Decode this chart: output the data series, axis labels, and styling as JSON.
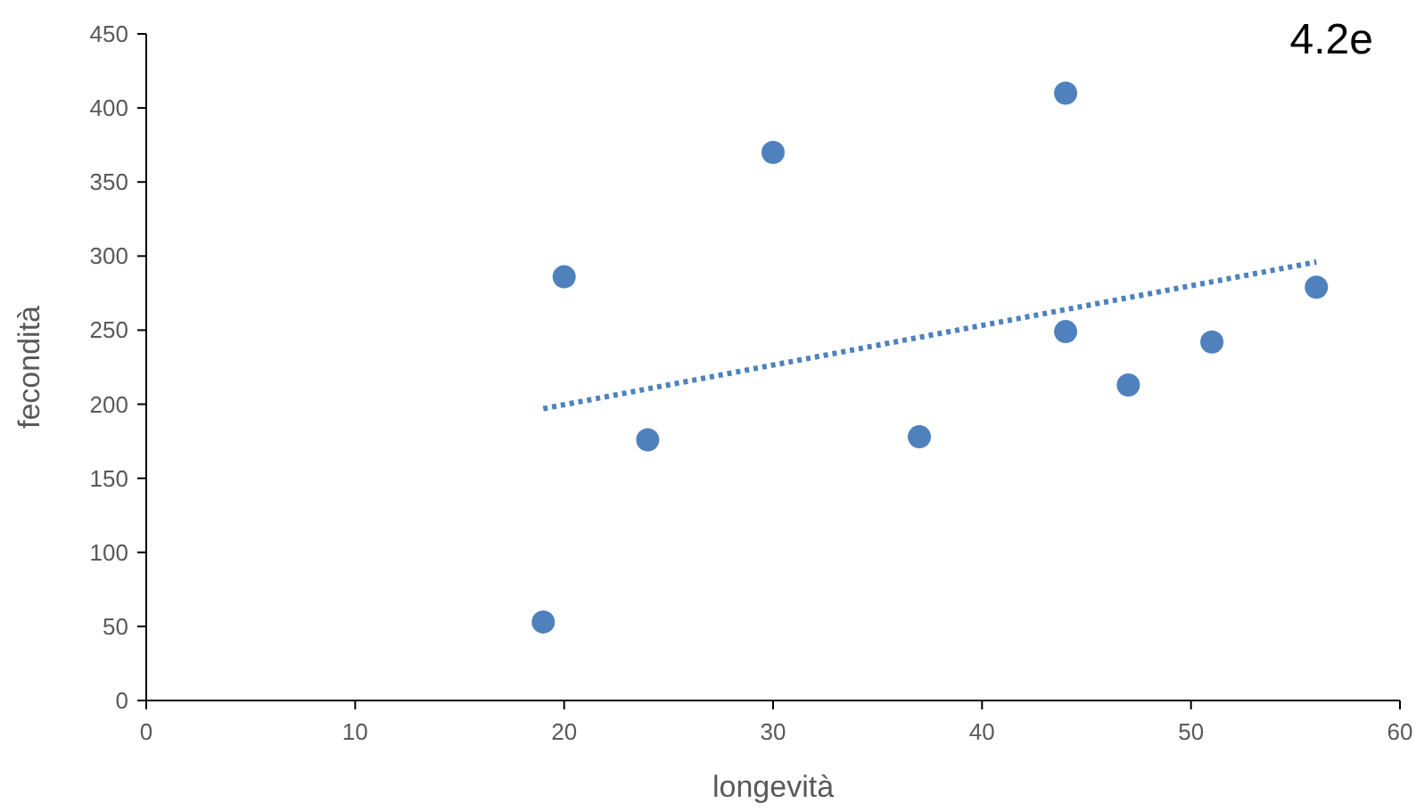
{
  "chart_data": {
    "type": "scatter",
    "title": "4.2e",
    "xlabel": "longevità",
    "ylabel": "fecondità",
    "xlim": [
      0,
      60
    ],
    "xticks": [
      0,
      10,
      20,
      30,
      40,
      50,
      60
    ],
    "ylim": [
      0,
      450
    ],
    "yticks": [
      0,
      50,
      100,
      150,
      200,
      250,
      300,
      350,
      400,
      450
    ],
    "grid": false,
    "marker": "circle",
    "series": [
      {
        "color": "#4f81bd",
        "x": [
          19,
          20,
          24,
          30,
          37,
          44,
          44,
          47,
          51,
          56
        ],
        "values": [
          53,
          286,
          176,
          370,
          178,
          410,
          249,
          213,
          242,
          279
        ]
      },
      {
        "type": "line",
        "color": "#4f81bd",
        "line_style": "dotted",
        "marker": "none",
        "x": [
          19,
          56
        ],
        "values": [
          197,
          296
        ]
      }
    ]
  }
}
